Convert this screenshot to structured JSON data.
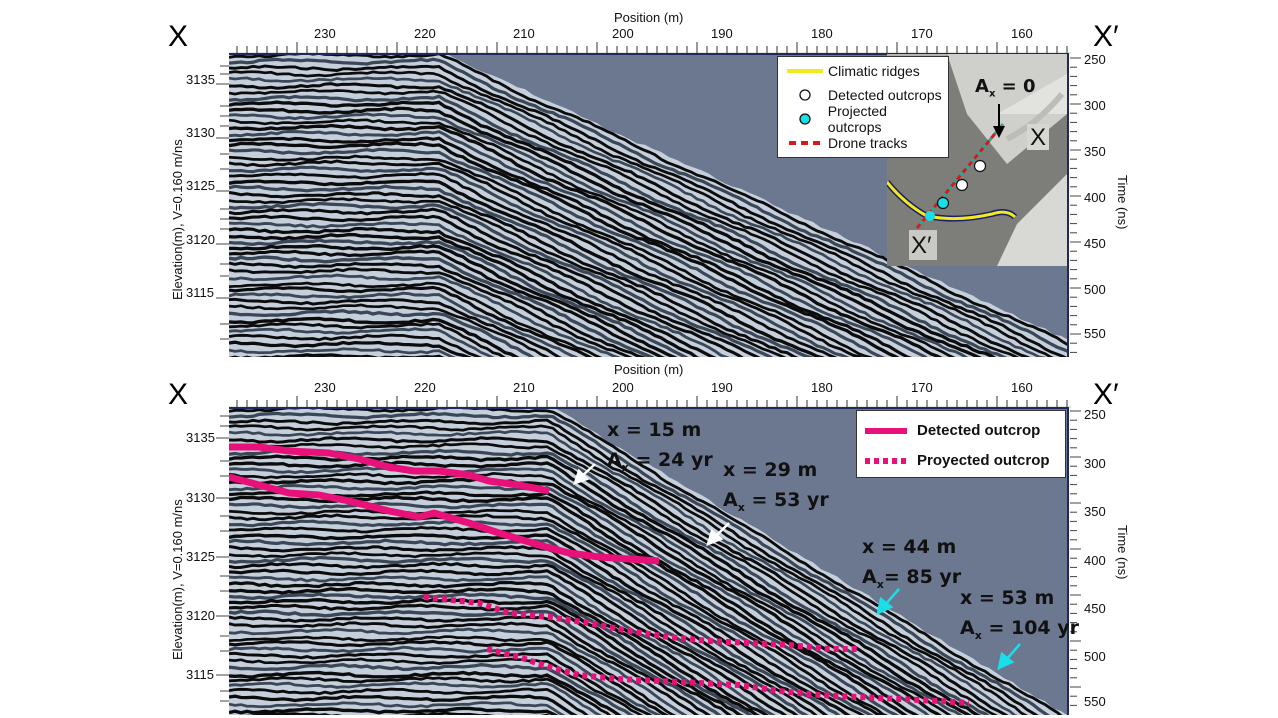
{
  "top_panel": {
    "left_label": "X",
    "right_label": "X′",
    "x_axis_title": "Position (m)",
    "x_ticks": [
      "230",
      "220",
      "210",
      "200",
      "190",
      "180",
      "170",
      "160"
    ],
    "y_axis_left_title": "Elevation(m), V=0.160 m/ns",
    "y_ticks_left": [
      "3135",
      "3130",
      "3125",
      "3120",
      "3115"
    ],
    "y_axis_right_title": "Time (ns)",
    "y_ticks_right": [
      "250",
      "300",
      "350",
      "400",
      "450",
      "500",
      "550"
    ],
    "legend": {
      "items": [
        {
          "label": "Climatic ridges",
          "symbol": "yellow-line"
        },
        {
          "label": "Detected outcrops",
          "symbol": "white-circle"
        },
        {
          "label": "Projected outcrops",
          "symbol": "cyan-circle"
        },
        {
          "label": "Drone tracks",
          "symbol": "red-dashed-line"
        }
      ]
    },
    "inset": {
      "annotation": "A",
      "annotation_sub": "x",
      "annotation_value": "= 0",
      "label_x": "X",
      "label_x_prime": "X′"
    }
  },
  "bottom_panel": {
    "left_label": "X",
    "right_label": "X′",
    "x_axis_title": "Position (m)",
    "x_ticks": [
      "230",
      "220",
      "210",
      "200",
      "190",
      "180",
      "170",
      "160"
    ],
    "y_axis_left_title": "Elevation(m), V=0.160 m/ns",
    "y_ticks_left": [
      "3135",
      "3130",
      "3125",
      "3120",
      "3115"
    ],
    "y_axis_right_title": "Time (ns)",
    "y_ticks_right": [
      "250",
      "300",
      "350",
      "400",
      "450",
      "500",
      "550"
    ],
    "legend": {
      "items": [
        {
          "label": "Detected outcrop",
          "symbol": "magenta-solid-line"
        },
        {
          "label": "Proyected outcrop",
          "symbol": "magenta-dotted-line"
        }
      ]
    },
    "annotations": [
      {
        "x_text": "x = 15 m",
        "a_prefix": "A",
        "a_sub": "x",
        "a_text": " = 24 yr",
        "arrow_color": "#ffffff"
      },
      {
        "x_text": "x = 29 m",
        "a_prefix": "A",
        "a_sub": "x",
        "a_text": " = 53 yr",
        "arrow_color": "#ffffff"
      },
      {
        "x_text": "x = 44 m",
        "a_prefix": "A",
        "a_sub": "x",
        "a_text": "= 85 yr",
        "arrow_color": "#19e0e8"
      },
      {
        "x_text": "x = 53 m",
        "a_prefix": "A",
        "a_sub": "x",
        "a_text": " = 104 yr",
        "arrow_color": "#19e0e8"
      }
    ]
  },
  "colors": {
    "background_sky": "#6b7890",
    "frame": "#1e2a5a",
    "detected_outcrop": "#e8117a",
    "climatic_ridges": "#f2ea1a",
    "projected_outcrop_marker": "#19e0e8",
    "drone_track": "#d8191c"
  }
}
